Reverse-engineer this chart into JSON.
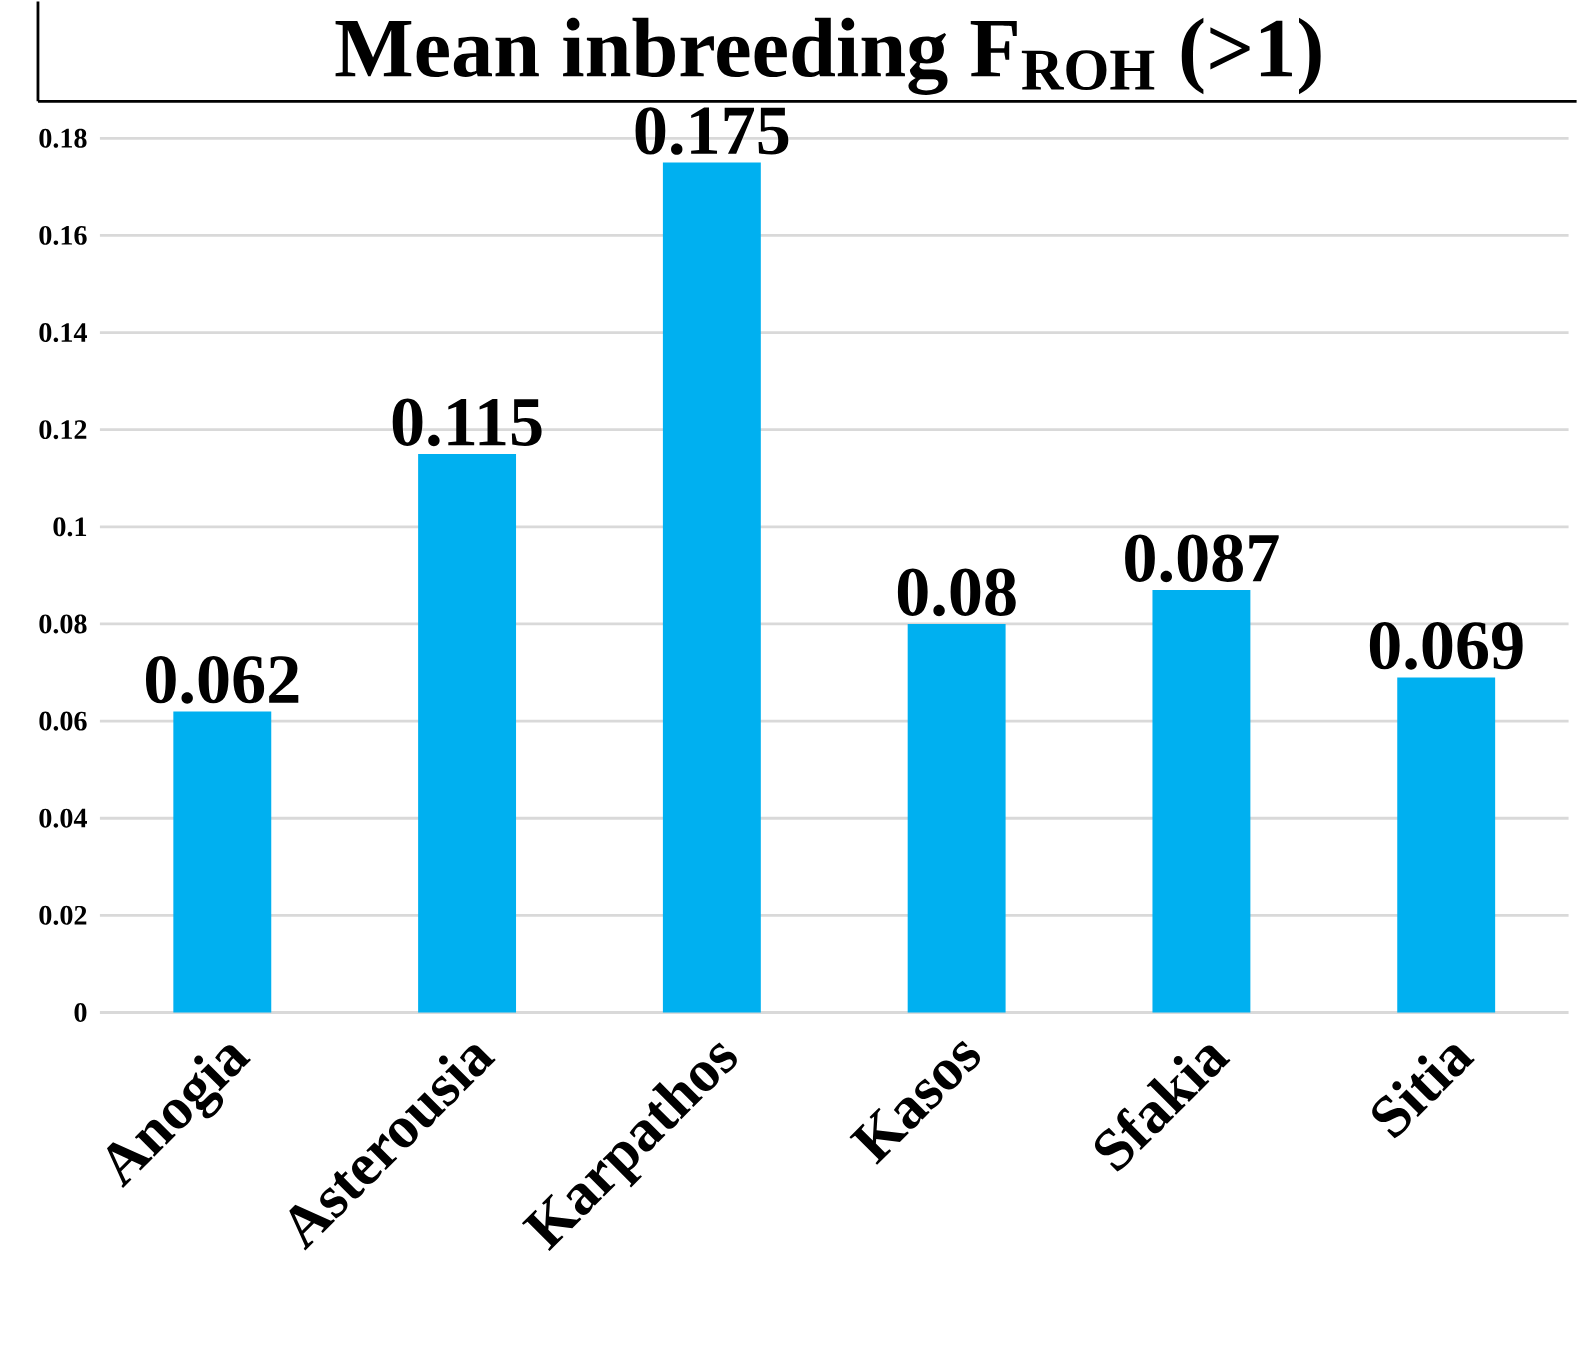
{
  "chart_data": {
    "type": "bar",
    "title": "Mean inbreeding F$_{ROH}$ (>1)",
    "categories": [
      "Anogia",
      "Asterousia",
      "Karpathos",
      "Kasos",
      "Sfakia",
      "Sitia"
    ],
    "values": [
      0.062,
      0.115,
      0.175,
      0.08,
      0.087,
      0.069
    ],
    "color": "#00b0f0",
    "ylim": [
      0,
      0.18
    ],
    "yticks": [
      0,
      0.02,
      0.04,
      0.06,
      0.08,
      0.1,
      0.12,
      0.14,
      0.16,
      0.18
    ],
    "grid": "y",
    "data_labels": true
  }
}
